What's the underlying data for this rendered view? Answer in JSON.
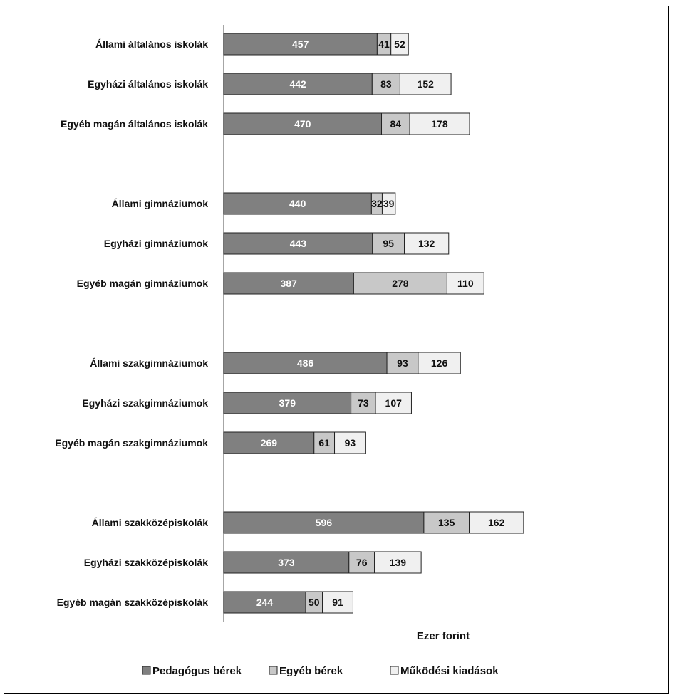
{
  "chart_data": {
    "type": "bar",
    "orientation": "horizontal",
    "stacked": true,
    "xlabel": "Ezer forint",
    "legend_position": "bottom",
    "grid": false,
    "categories": [
      "Állami általános iskolák",
      "Egyházi általános iskolák",
      "Egyéb magán általános iskolák",
      "Állami gimnáziumok",
      "Egyházi gimnáziumok",
      "Egyéb magán gimnáziumok",
      "Állami szakgimnáziumok",
      "Egyházi szakgimnáziumok",
      "Egyéb magán szakgimnáziumok",
      "Állami szakközépiskolák",
      "Egyházi szakközépiskolák",
      "Egyéb magán szakközépiskolák"
    ],
    "series": [
      {
        "name": "Pedagógus bérek",
        "color": "#808080",
        "label_color": "#ffffff",
        "values": [
          457,
          442,
          470,
          440,
          443,
          387,
          486,
          379,
          269,
          596,
          373,
          244
        ]
      },
      {
        "name": "Egyéb bérek",
        "color": "#c8c8c8",
        "label_color": "#111111",
        "values": [
          41,
          83,
          84,
          32,
          95,
          278,
          93,
          73,
          61,
          135,
          76,
          50
        ]
      },
      {
        "name": "Működési kiadások",
        "color": "#f0f0f0",
        "label_color": "#111111",
        "values": [
          52,
          152,
          178,
          39,
          132,
          110,
          126,
          107,
          93,
          162,
          139,
          91
        ]
      }
    ]
  }
}
